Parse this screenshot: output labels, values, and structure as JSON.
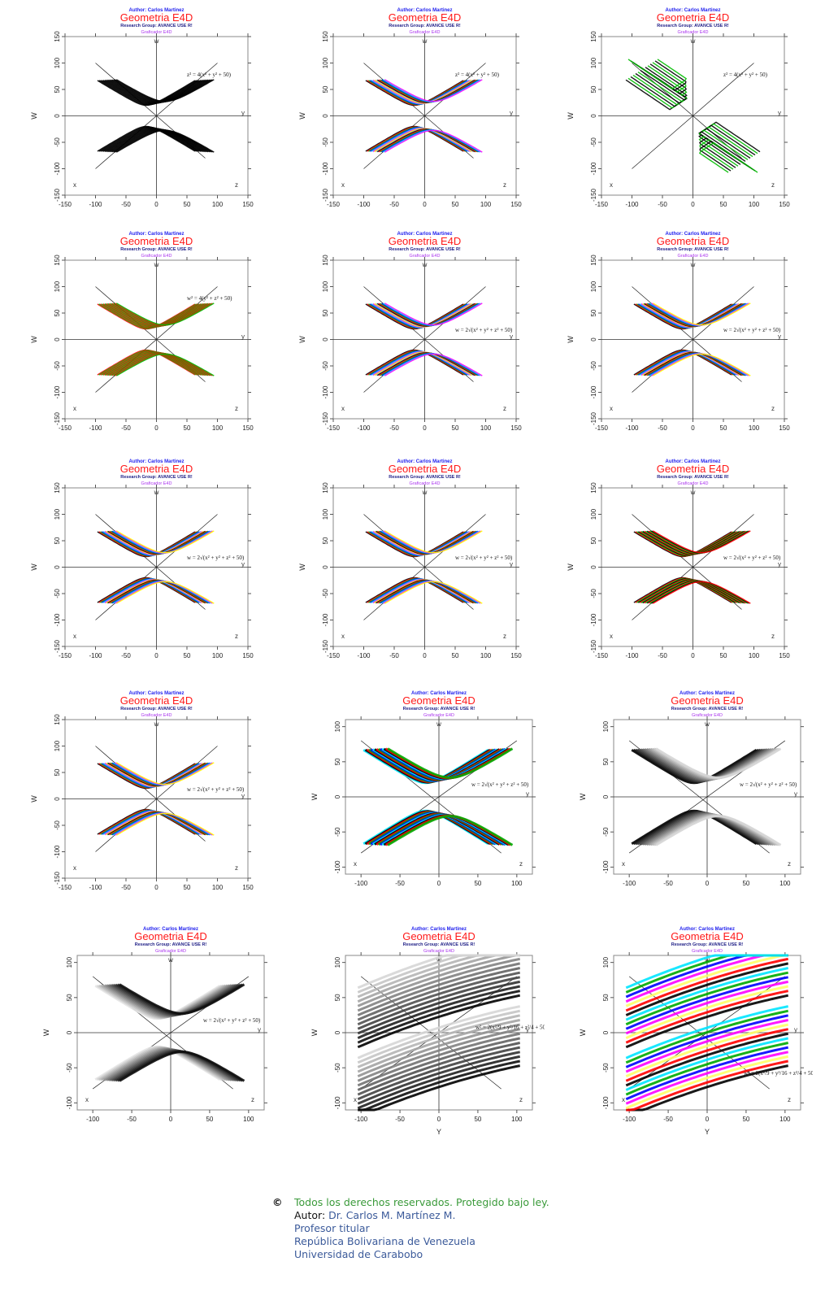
{
  "header": {
    "author": "Author: Carlos Martinez",
    "title": "Geometria E4D",
    "group": "Research Group: AVANCE USE R!",
    "graficador": "Graficador E4D"
  },
  "axis_labels": {
    "w_top": "w",
    "y_right": "y",
    "x_corner": "x",
    "z_corner": "z",
    "ylabel": "W",
    "xlabel_bottom": "Y"
  },
  "chart_data": [
    {
      "type": "scatter",
      "title": "Geometria E4D",
      "ylabel": "W",
      "xlim": [
        -150,
        150
      ],
      "ylim": [
        -150,
        150
      ],
      "xticks": [
        -150,
        -100,
        -50,
        0,
        50,
        100,
        150
      ],
      "yticks": [
        -150,
        -100,
        -50,
        0,
        50,
        100,
        150
      ],
      "equation": "z² = 4(x² + y² + 50)",
      "style": "black wireframe hyperboloid",
      "colors": [
        "#000000"
      ]
    },
    {
      "type": "scatter",
      "title": "Geometria E4D",
      "ylabel": "W",
      "xlim": [
        -150,
        150
      ],
      "ylim": [
        -150,
        150
      ],
      "xticks": [
        -150,
        -100,
        -50,
        0,
        50,
        100,
        150
      ],
      "yticks": [
        -150,
        -100,
        -50,
        0,
        50,
        100,
        150
      ],
      "equation": "z² = 4(x² + y² + 50)",
      "style": "multicolor wireframe hyperboloid",
      "colors": [
        "#000000",
        "#ff0000",
        "#00aa00",
        "#0000ff",
        "#00e5ff",
        "#ff00ff",
        "#ffff00",
        "#aaaaaa"
      ]
    },
    {
      "type": "scatter",
      "title": "Geometria E4D",
      "ylabel": "W",
      "xlim": [
        -150,
        150
      ],
      "ylim": [
        -150,
        150
      ],
      "xticks": [
        -150,
        -100,
        -50,
        0,
        50,
        100,
        150
      ],
      "yticks": [
        -150,
        -100,
        -50,
        0,
        50,
        100,
        150
      ],
      "equation": "z² = 4(x² + y² + 50)",
      "style": "black/green wireframe rotated",
      "colors": [
        "#000000",
        "#00bb00"
      ]
    },
    {
      "type": "scatter",
      "title": "Geometria E4D",
      "ylabel": "W",
      "xlim": [
        -150,
        150
      ],
      "ylim": [
        -150,
        150
      ],
      "xticks": [
        -150,
        -100,
        -50,
        0,
        50,
        100,
        150
      ],
      "yticks": [
        -150,
        -100,
        -50,
        0,
        50,
        100,
        150
      ],
      "equation": "w² = 4(y² + z² + 50)",
      "style": "red/green wireframe",
      "colors": [
        "#ff0000",
        "#00bb00"
      ]
    },
    {
      "type": "scatter",
      "title": "Geometria E4D",
      "ylabel": "W",
      "xlim": [
        -150,
        150
      ],
      "ylim": [
        -150,
        150
      ],
      "xticks": [
        -150,
        -100,
        -50,
        0,
        50,
        100,
        150
      ],
      "yticks": [
        -150,
        -100,
        -50,
        0,
        50,
        100,
        150
      ],
      "equation": "w = 2√(x² + y² + z² + 50)",
      "style": "multicolor curve families",
      "colors": [
        "#000000",
        "#ff0000",
        "#00aa00",
        "#0000ff",
        "#00e5ff",
        "#ff00ff",
        "#ffff00",
        "#aaaaaa"
      ]
    },
    {
      "type": "scatter",
      "title": "Geometria E4D",
      "ylabel": "W",
      "xlim": [
        -150,
        150
      ],
      "ylim": [
        -150,
        150
      ],
      "xticks": [
        -150,
        -100,
        -50,
        0,
        50,
        100,
        150
      ],
      "yticks": [
        -150,
        -100,
        -50,
        0,
        50,
        100,
        150
      ],
      "equation": "w = 2√(x² + y² + z² + 50)",
      "style": "multicolor curve families",
      "colors": [
        "#000000",
        "#ff0000",
        "#00aa00",
        "#0000ff",
        "#00e5ff",
        "#ff00ff",
        "#ffff00"
      ]
    },
    {
      "type": "scatter",
      "title": "Geometria E4D",
      "ylabel": "W",
      "xlim": [
        -150,
        150
      ],
      "ylim": [
        -150,
        150
      ],
      "xticks": [
        -150,
        -100,
        -50,
        0,
        50,
        100,
        150
      ],
      "yticks": [
        -150,
        -100,
        -50,
        0,
        50,
        100,
        150
      ],
      "equation": "w = 2√(x² + y² + z² + 50)",
      "style": "multicolor curve families",
      "colors": [
        "#000000",
        "#ff0000",
        "#00aa00",
        "#0000ff",
        "#00e5ff",
        "#ff00ff",
        "#ffff00"
      ]
    },
    {
      "type": "scatter",
      "title": "Geometria E4D",
      "ylabel": "W",
      "xlim": [
        -150,
        150
      ],
      "ylim": [
        -150,
        150
      ],
      "xticks": [
        -150,
        -100,
        -50,
        0,
        50,
        100,
        150
      ],
      "yticks": [
        -150,
        -100,
        -50,
        0,
        50,
        100,
        150
      ],
      "equation": "w = 2√(x² + y² + z² + 50)",
      "style": "multicolor dense curves",
      "colors": [
        "#000000",
        "#ff0000",
        "#00aa00",
        "#0000ff",
        "#00e5ff",
        "#ff00ff",
        "#ffff00"
      ]
    },
    {
      "type": "scatter",
      "title": "Geometria E4D",
      "ylabel": "W",
      "xlim": [
        -150,
        150
      ],
      "ylim": [
        -150,
        150
      ],
      "xticks": [
        -150,
        -100,
        -50,
        0,
        50,
        100,
        150
      ],
      "yticks": [
        -150,
        -100,
        -50,
        0,
        50,
        100,
        150
      ],
      "equation": "w = 2√(x² + y² + z² + 50)",
      "style": "black/red/green wireframe",
      "colors": [
        "#000000",
        "#ff0000",
        "#00bb00"
      ]
    },
    {
      "type": "scatter",
      "title": "Geometria E4D",
      "ylabel": "W",
      "xlim": [
        -150,
        150
      ],
      "ylim": [
        -150,
        150
      ],
      "xticks": [
        -150,
        -100,
        -50,
        0,
        50,
        100,
        150
      ],
      "yticks": [
        -150,
        -100,
        -50,
        0,
        50,
        100,
        150
      ],
      "equation": "w = 2√(x² + y² + z² + 50)",
      "style": "multicolor dense wireframe",
      "colors": [
        "#000000",
        "#ff0000",
        "#00bb00",
        "#0000ff",
        "#00e5ff",
        "#ff00ff",
        "#ffff00"
      ]
    },
    {
      "type": "scatter",
      "title": "Geometria E4D",
      "ylabel": "W",
      "xlim": [
        -120,
        120
      ],
      "ylim": [
        -110,
        110
      ],
      "xticks": [
        -100,
        -50,
        0,
        50,
        100
      ],
      "yticks": [
        -100,
        -50,
        0,
        50,
        100
      ],
      "equation": "w = 2√(x² + y² + z² + 50)",
      "style": "dense multicolor (cyan dominant)",
      "colors": [
        "#00e5ff",
        "#000000",
        "#ff0000",
        "#00aa00",
        "#0000ff"
      ]
    },
    {
      "type": "scatter",
      "title": "Geometria E4D",
      "ylabel": "W",
      "xlim": [
        -120,
        120
      ],
      "ylim": [
        -110,
        110
      ],
      "xticks": [
        -100,
        -50,
        0,
        50,
        100
      ],
      "yticks": [
        -100,
        -50,
        0,
        50,
        100
      ],
      "equation": "w = 2√(x² + y² + z² + 50)",
      "style": "grayscale shaded",
      "colors": [
        "#000000",
        "#ffffff"
      ]
    },
    {
      "type": "scatter",
      "title": "Geometria E4D",
      "ylabel": "W",
      "xlim": [
        -120,
        120
      ],
      "ylim": [
        -110,
        110
      ],
      "xticks": [
        -100,
        -50,
        0,
        50,
        100
      ],
      "yticks": [
        -100,
        -50,
        0,
        50,
        100
      ],
      "equation": "w = 2√(x² + y² + z² + 50)",
      "style": "grayscale shaded (inverted)",
      "colors": [
        "#ffffff",
        "#000000"
      ]
    },
    {
      "type": "scatter",
      "title": "Geometria E4D",
      "ylabel": "W",
      "xlabel": "Y",
      "xlim": [
        -120,
        120
      ],
      "ylim": [
        -110,
        110
      ],
      "xticks": [
        -100,
        -50,
        0,
        50,
        100
      ],
      "yticks": [
        -100,
        -50,
        0,
        50,
        100
      ],
      "equation": "w² = 2(x²/9 + y²/16 + z²/4 + 50)",
      "style": "grayscale shaded sheets",
      "colors": [
        "#000000",
        "#ffffff"
      ]
    },
    {
      "type": "scatter",
      "title": "Geometria E4D",
      "ylabel": "W",
      "xlabel": "Y",
      "xlim": [
        -120,
        120
      ],
      "ylim": [
        -110,
        110
      ],
      "xticks": [
        -100,
        -50,
        0,
        50,
        100
      ],
      "yticks": [
        -100,
        -50,
        0,
        50,
        100
      ],
      "equation": "w² = 2(x²/9 + y²/16 + z²/4 + 50)",
      "style": "striped multicolor sheets",
      "colors": [
        "#000000",
        "#ff0000",
        "#ffff66",
        "#ff00ff",
        "#0000ff",
        "#00aa00",
        "#00e5ff"
      ]
    }
  ],
  "footer": {
    "copyright_symbol": "©",
    "rights": "Todos los derechos reservados. Protegido bajo ley.",
    "author_label": "Autor:",
    "author_name": " Dr. Carlos M. Martínez  M.",
    "position": "Profesor titular",
    "country": "República Bolivariana de Venezuela",
    "university": "Universidad de Carabobo"
  }
}
